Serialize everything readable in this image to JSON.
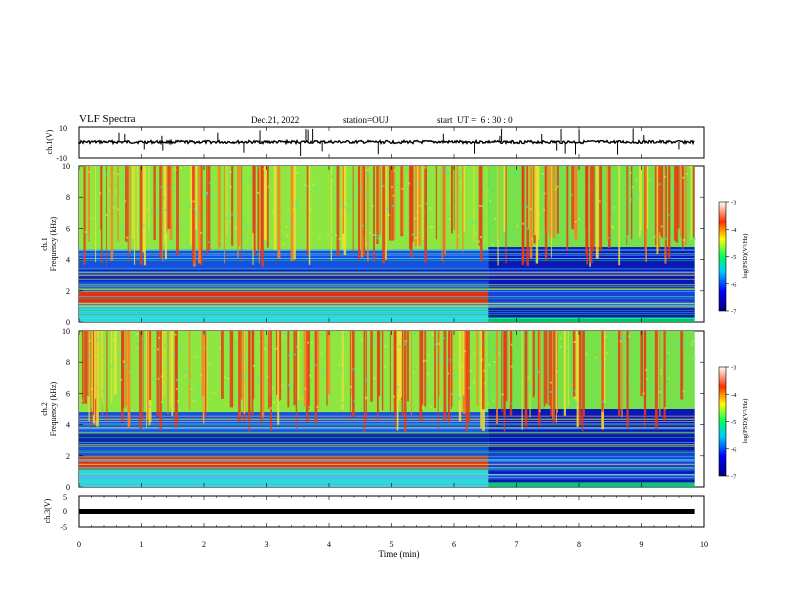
{
  "header": {
    "title": "VLF Spectra",
    "date": "Dec.21, 2022",
    "station": "station=OUJ",
    "start": "start  UT =  6 : 30 : 0"
  },
  "chart_data": [
    {
      "type": "line",
      "ylabel": "ch.1(V)",
      "ylim": [
        -10,
        10
      ],
      "yticks": [
        "10",
        "-10"
      ],
      "xlim": [
        0,
        10
      ],
      "series": [
        {
          "values": [
            -1,
            1
          ],
          "description_level": 0.7
        }
      ]
    },
    {
      "type": "heatmap",
      "ylabel": "ch.1\nFrequency (kHz)",
      "ylim": [
        0,
        10
      ],
      "yticks": [
        "0",
        "2",
        "4",
        "6",
        "8",
        "10"
      ],
      "xlim": [
        0,
        10
      ],
      "colorbar": {
        "ticks": [
          "-3",
          "-4",
          "-5",
          "-6",
          "-7"
        ],
        "label": "log(PSD)(V²/Hz)",
        "range": [
          -7,
          -3
        ]
      },
      "regime_change_min": 6.55
    },
    {
      "type": "heatmap",
      "ylabel": "ch.2\nFrequency (kHz)",
      "ylim": [
        0,
        10
      ],
      "yticks": [
        "0",
        "2",
        "4",
        "6",
        "8",
        "10"
      ],
      "xlim": [
        0,
        10
      ],
      "colorbar": {
        "ticks": [
          "-3",
          "-4",
          "-5",
          "-6",
          "-7"
        ],
        "label": "log(PSD)(V²/Hz)",
        "range": [
          -7,
          -3
        ]
      },
      "regime_change_min": 6.55
    },
    {
      "type": "line",
      "ylabel": "ch.3(V)",
      "ylim": [
        -5,
        5
      ],
      "yticks": [
        "5",
        "0",
        "-5"
      ],
      "xlim": [
        0,
        10
      ],
      "series": [
        {
          "values": [
            0,
            0
          ]
        }
      ]
    }
  ],
  "xaxis": {
    "label": "Time (min)",
    "ticks": [
      "0",
      "1",
      "2",
      "3",
      "4",
      "5",
      "6",
      "7",
      "8",
      "9",
      "10"
    ],
    "data_end_min": 9.85
  }
}
